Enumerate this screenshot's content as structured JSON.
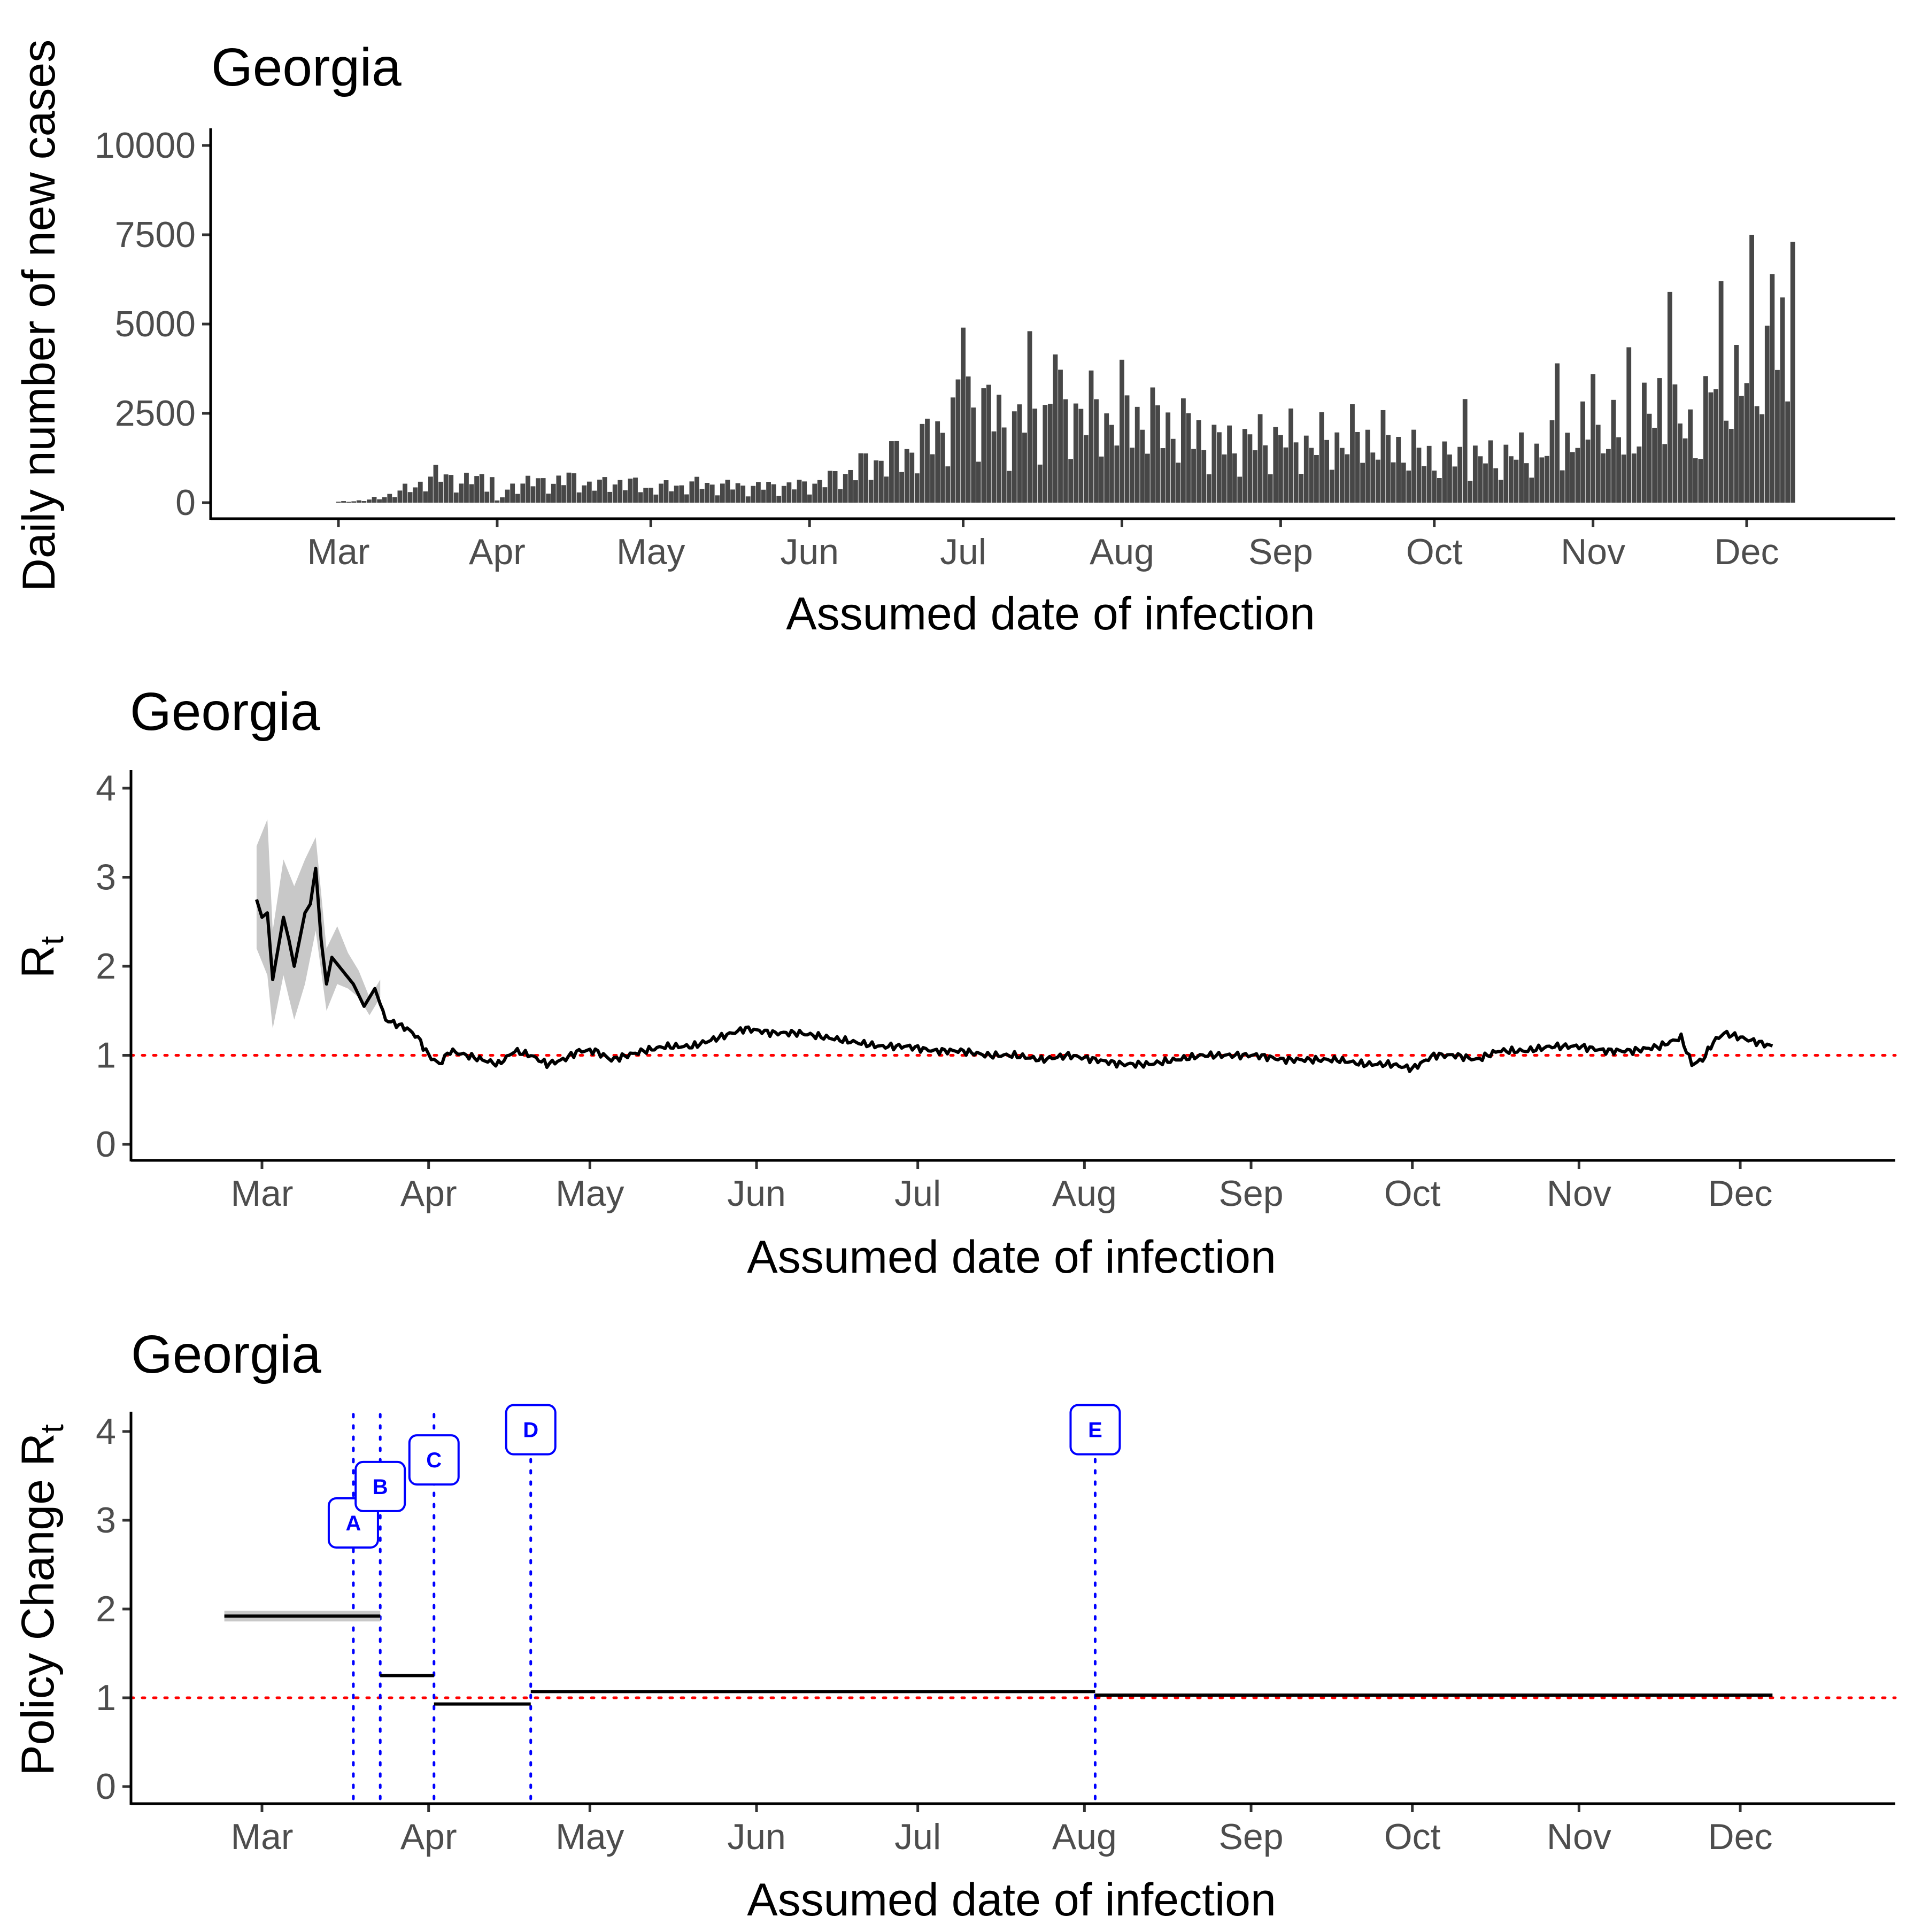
{
  "chart_data": [
    {
      "type": "bar",
      "title": "Georgia",
      "xlabel": "Assumed date of infection",
      "ylabel": "Daily number of new cases",
      "ylim": [
        0,
        10000
      ],
      "yticks": [
        "0",
        "2500",
        "5000",
        "7500",
        "10000"
      ],
      "xticks": [
        "Mar",
        "Apr",
        "May",
        "Jun",
        "Jul",
        "Aug",
        "Sep",
        "Oct",
        "Nov",
        "Dec"
      ],
      "xtick_days": [
        0,
        31,
        61,
        92,
        122,
        153,
        184,
        214,
        245,
        275
      ],
      "x_range_days": [
        -25,
        305
      ],
      "series_anchor_days": [
        0,
        6,
        12,
        18,
        21,
        24,
        27,
        30,
        31,
        35,
        40,
        45,
        50,
        55,
        61,
        70,
        80,
        90,
        95,
        100,
        105,
        110,
        115,
        120,
        122,
        127,
        130,
        135,
        140,
        145,
        150,
        155,
        160,
        165,
        170,
        175,
        180,
        185,
        190,
        195,
        200,
        205,
        210,
        214,
        220,
        225,
        230,
        235,
        240,
        245,
        250,
        255,
        258,
        260,
        263,
        266,
        268,
        270,
        272,
        274,
        276,
        278,
        280,
        282
      ],
      "series_anchor_values": [
        30,
        100,
        400,
        900,
        1100,
        700,
        950,
        1000,
        60,
        800,
        750,
        900,
        650,
        800,
        550,
        700,
        600,
        650,
        800,
        1200,
        1600,
        1800,
        2400,
        3200,
        4000,
        3600,
        2900,
        3400,
        3500,
        3600,
        3200,
        3400,
        3000,
        2900,
        2300,
        2200,
        2400,
        2500,
        2200,
        2400,
        2500,
        2300,
        1900,
        1700,
        1600,
        1700,
        1800,
        1900,
        2300,
        2600,
        2500,
        3000,
        3900,
        3200,
        2800,
        2700,
        4200,
        5000,
        4800,
        4300,
        5000,
        5800,
        5000,
        5200
      ],
      "spikes": [
        {
          "day": 122,
          "value": 4900
        },
        {
          "day": 135,
          "value": 4800
        },
        {
          "day": 140,
          "value": 4150
        },
        {
          "day": 153,
          "value": 4000
        },
        {
          "day": 220,
          "value": 2900
        },
        {
          "day": 238,
          "value": 3900
        },
        {
          "day": 245,
          "value": 3600
        },
        {
          "day": 252,
          "value": 4350
        },
        {
          "day": 260,
          "value": 5900
        },
        {
          "day": 270,
          "value": 6200
        },
        {
          "day": 276,
          "value": 7500
        },
        {
          "day": 280,
          "value": 6400
        },
        {
          "day": 284,
          "value": 7300
        }
      ]
    },
    {
      "type": "line",
      "title": "Georgia",
      "xlabel": "Assumed date of infection",
      "ylabel": "R",
      "ylabel_subscript": "t",
      "ylim": [
        -0.15,
        4.15
      ],
      "yticks": [
        "0",
        "1",
        "2",
        "3",
        "4"
      ],
      "xticks": [
        "Mar",
        "Apr",
        "May",
        "Jun",
        "Jul",
        "Aug",
        "Sep",
        "Oct",
        "Nov",
        "Dec"
      ],
      "xtick_days": [
        0,
        31,
        61,
        92,
        122,
        153,
        184,
        214,
        245,
        275
      ],
      "x_range_days": [
        -25,
        305
      ],
      "reference_value": 1,
      "x": [
        -1,
        0,
        1,
        2,
        3,
        4,
        5,
        6,
        7,
        8,
        9,
        10,
        11,
        12,
        13,
        15,
        17,
        19,
        21,
        23,
        25,
        27,
        29,
        31,
        33,
        35,
        38,
        41,
        44,
        47,
        50,
        53,
        56,
        59,
        62,
        65,
        68,
        71,
        75,
        80,
        85,
        90,
        95,
        100,
        105,
        110,
        115,
        120,
        125,
        130,
        135,
        140,
        145,
        150,
        155,
        160,
        165,
        170,
        175,
        180,
        185,
        190,
        195,
        200,
        205,
        210,
        214,
        218,
        222,
        226,
        230,
        235,
        240,
        245,
        250,
        255,
        260,
        264,
        266,
        268,
        270,
        272,
        275,
        278,
        281
      ],
      "y": [
        2.75,
        2.55,
        2.6,
        1.85,
        2.2,
        2.55,
        2.3,
        2.0,
        2.3,
        2.6,
        2.7,
        3.1,
        2.3,
        1.8,
        2.1,
        1.95,
        1.8,
        1.55,
        1.75,
        1.4,
        1.35,
        1.3,
        1.2,
        1.0,
        0.9,
        1.05,
        1.0,
        0.95,
        0.9,
        1.05,
        1.0,
        0.9,
        0.95,
        1.05,
        1.05,
        0.95,
        1.0,
        1.05,
        1.1,
        1.1,
        1.2,
        1.3,
        1.25,
        1.25,
        1.2,
        1.15,
        1.1,
        1.1,
        1.05,
        1.05,
        1.0,
        1.0,
        0.95,
        1.0,
        0.95,
        0.9,
        0.9,
        0.95,
        1.0,
        1.0,
        1.0,
        0.95,
        0.95,
        0.95,
        0.9,
        0.9,
        0.85,
        1.0,
        1.0,
        0.95,
        1.05,
        1.05,
        1.1,
        1.1,
        1.05,
        1.05,
        1.1,
        1.2,
        0.9,
        0.95,
        1.15,
        1.25,
        1.2,
        1.15,
        1.1
      ],
      "band_x": [
        -1,
        1,
        2,
        4,
        6,
        8,
        10,
        12,
        14,
        16,
        18,
        20,
        22
      ],
      "band_lower": [
        2.2,
        1.9,
        1.3,
        1.9,
        1.4,
        1.8,
        2.4,
        1.5,
        1.8,
        1.75,
        1.65,
        1.45,
        1.65
      ],
      "band_upper": [
        3.35,
        3.65,
        2.4,
        3.2,
        2.9,
        3.2,
        3.45,
        2.2,
        2.45,
        2.15,
        1.95,
        1.65,
        1.85
      ]
    },
    {
      "type": "step",
      "title": "Georgia",
      "xlabel": "Assumed date of infection",
      "ylabel": "Policy Change R",
      "ylabel_subscript": "t",
      "ylim": [
        -0.15,
        4.15
      ],
      "yticks": [
        "0",
        "1",
        "2",
        "3",
        "4"
      ],
      "xticks": [
        "Mar",
        "Apr",
        "May",
        "Jun",
        "Jul",
        "Aug",
        "Sep",
        "Oct",
        "Nov",
        "Dec"
      ],
      "xtick_days": [
        0,
        31,
        61,
        92,
        122,
        153,
        184,
        214,
        245,
        275
      ],
      "x_range_days": [
        -25,
        305
      ],
      "reference_value": 1,
      "segments": [
        {
          "start_day": -7,
          "end_day": 22,
          "value": 1.92,
          "lower": 1.86,
          "upper": 1.98
        },
        {
          "start_day": 22,
          "end_day": 32,
          "value": 1.25
        },
        {
          "start_day": 32,
          "end_day": 50,
          "value": 0.93
        },
        {
          "start_day": 50,
          "end_day": 155,
          "value": 1.07
        },
        {
          "start_day": 155,
          "end_day": 281,
          "value": 1.03
        }
      ],
      "policy_changes": [
        {
          "label": "A",
          "day": 17,
          "label_y": 2.97
        },
        {
          "label": "B",
          "day": 22,
          "label_y": 3.38
        },
        {
          "label": "C",
          "day": 32,
          "label_y": 3.68
        },
        {
          "label": "D",
          "day": 50,
          "label_y": 4.02
        },
        {
          "label": "E",
          "day": 155,
          "label_y": 4.02
        }
      ]
    }
  ]
}
